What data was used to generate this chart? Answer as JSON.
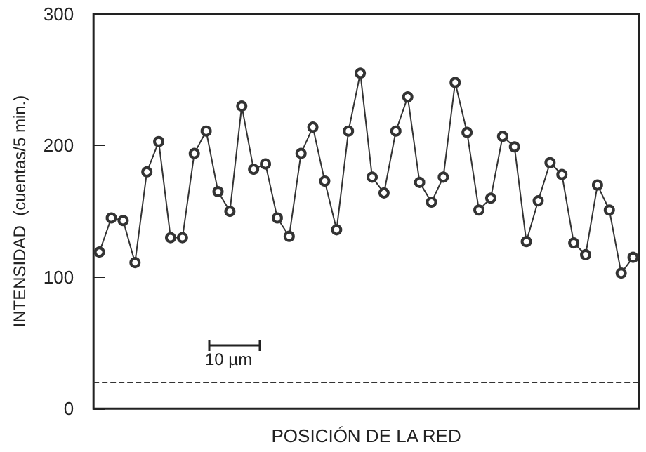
{
  "chart_data": {
    "type": "line",
    "xlabel": "POSICIÓN DE LA RED",
    "ylabel": "INTENSIDAD  (cuentas/5 min.)",
    "categories": [
      null,
      null,
      null,
      null,
      null,
      null,
      null,
      null,
      null,
      null,
      null,
      null,
      null,
      null,
      null,
      null,
      null,
      null,
      null,
      null,
      null,
      null,
      null,
      null,
      null,
      null,
      null,
      null,
      null,
      null,
      null,
      null,
      null,
      null,
      null,
      null,
      null,
      null,
      null,
      null,
      null,
      null,
      null,
      null,
      null,
      null
    ],
    "series": [
      {
        "color": "#333333",
        "values": [
          119,
          145,
          143,
          111,
          180,
          203,
          130,
          130,
          194,
          211,
          165,
          150,
          230,
          182,
          186,
          145,
          131,
          194,
          214,
          173,
          136,
          211,
          255,
          176,
          164,
          211,
          237,
          172,
          157,
          176,
          248,
          210,
          151,
          160,
          207,
          199,
          127,
          158,
          187,
          178,
          126,
          117,
          170,
          151,
          103,
          115
        ]
      }
    ],
    "ylim": [
      0,
      300
    ],
    "yticks": [
      0,
      100,
      200,
      300
    ],
    "grid": false,
    "marker": "circle",
    "line_style": "solid",
    "ref_lines": [
      {
        "axis": "y",
        "value": 20,
        "color": "#333333",
        "line_style": "dashed"
      }
    ],
    "annotations": [
      "10 µm"
    ]
  }
}
